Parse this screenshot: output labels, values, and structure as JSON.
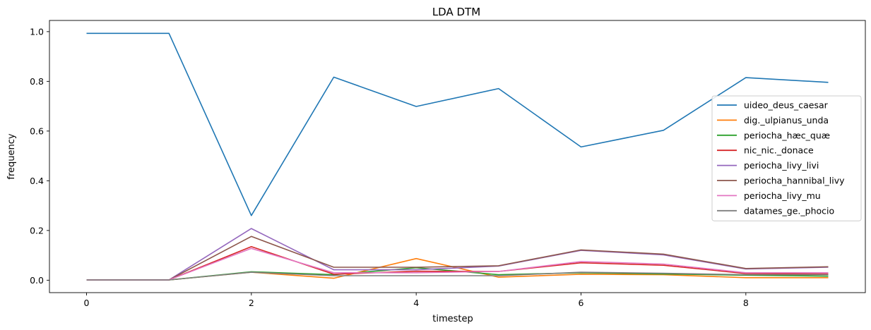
{
  "chart_data": {
    "type": "line",
    "title": "LDA DTM",
    "xlabel": "timestep",
    "ylabel": "frequency",
    "xlim": [
      -0.45,
      9.45
    ],
    "ylim": [
      -0.05,
      1.045
    ],
    "xticks": [
      0,
      2,
      4,
      6,
      8
    ],
    "xtick_labels": [
      "0",
      "2",
      "4",
      "6",
      "8"
    ],
    "yticks": [
      0.0,
      0.2,
      0.4,
      0.6,
      0.8,
      1.0
    ],
    "ytick_labels": [
      "0.0",
      "0.2",
      "0.4",
      "0.6",
      "0.8",
      "1.0"
    ],
    "grid": false,
    "legend_position": "center-right",
    "x": [
      0,
      1,
      2,
      3,
      4,
      5,
      6,
      7,
      8,
      9
    ],
    "series": [
      {
        "name": "uideo_deus_caesar",
        "color": "#1f77b4",
        "values": [
          0.993,
          0.993,
          0.26,
          0.817,
          0.699,
          0.771,
          0.536,
          0.603,
          0.815,
          0.796
        ]
      },
      {
        "name": "dig._ulpianus_unda",
        "color": "#ff7f0e",
        "values": [
          0.001,
          0.001,
          0.032,
          0.008,
          0.087,
          0.012,
          0.024,
          0.022,
          0.01,
          0.01
        ]
      },
      {
        "name": "periocha_hæc_quæ",
        "color": "#2ca02c",
        "values": [
          0.001,
          0.001,
          0.034,
          0.022,
          0.05,
          0.022,
          0.03,
          0.025,
          0.02,
          0.016
        ]
      },
      {
        "name": "nic_nic._donace",
        "color": "#d62728",
        "values": [
          0.001,
          0.001,
          0.135,
          0.024,
          0.036,
          0.035,
          0.07,
          0.06,
          0.027,
          0.025
        ]
      },
      {
        "name": "periocha_livy_livi",
        "color": "#9467bd",
        "values": [
          0.001,
          0.001,
          0.208,
          0.042,
          0.042,
          0.057,
          0.12,
          0.102,
          0.045,
          0.052
        ]
      },
      {
        "name": "periocha_hannibal_livy",
        "color": "#8c564b",
        "values": [
          0.001,
          0.001,
          0.176,
          0.052,
          0.052,
          0.058,
          0.122,
          0.105,
          0.047,
          0.054
        ]
      },
      {
        "name": "periocha_livy_mu",
        "color": "#e377c2",
        "values": [
          0.001,
          0.001,
          0.128,
          0.03,
          0.03,
          0.035,
          0.075,
          0.065,
          0.03,
          0.03
        ]
      },
      {
        "name": "datames_ge._phocio",
        "color": "#7f7f7f",
        "values": [
          0.001,
          0.001,
          0.032,
          0.018,
          0.018,
          0.018,
          0.032,
          0.028,
          0.022,
          0.022
        ]
      }
    ]
  }
}
